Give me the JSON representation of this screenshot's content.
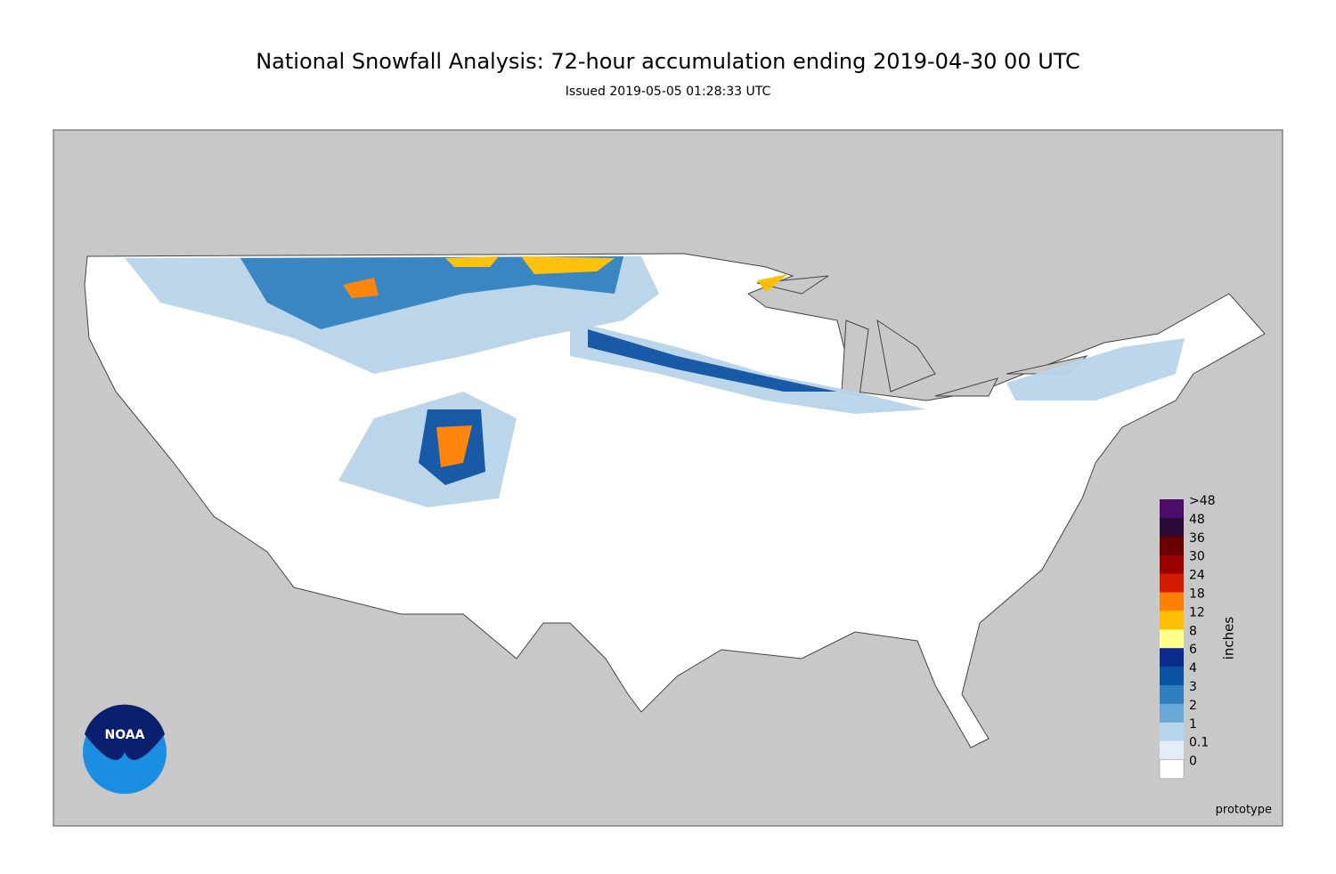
{
  "header": {
    "title": "National Snowfall Analysis: 72-hour accumulation ending 2019-04-30 00 UTC",
    "subtitle": "Issued 2019-05-05 01:28:33 UTC"
  },
  "legend": {
    "unit": "inches",
    "entries": [
      {
        "label": ">48",
        "color": "#4b0c6b"
      },
      {
        "label": "48",
        "color": "#2c0a36"
      },
      {
        "label": "36",
        "color": "#6a0000"
      },
      {
        "label": "30",
        "color": "#9c0000"
      },
      {
        "label": "24",
        "color": "#d41a00"
      },
      {
        "label": "18",
        "color": "#ff8000"
      },
      {
        "label": "12",
        "color": "#ffbf00"
      },
      {
        "label": "8",
        "color": "#ffff8a"
      },
      {
        "label": "6",
        "color": "#0a2a8c"
      },
      {
        "label": "4",
        "color": "#0c52a2"
      },
      {
        "label": "3",
        "color": "#3080c0"
      },
      {
        "label": "2",
        "color": "#6aa8d8"
      },
      {
        "label": "1",
        "color": "#b8d4ea"
      },
      {
        "label": "0.1",
        "color": "#e4eef8"
      },
      {
        "label": "0",
        "color": "#ffffff"
      }
    ]
  },
  "logo": {
    "text": "NOAA"
  },
  "footer": {
    "note": "prototype"
  }
}
